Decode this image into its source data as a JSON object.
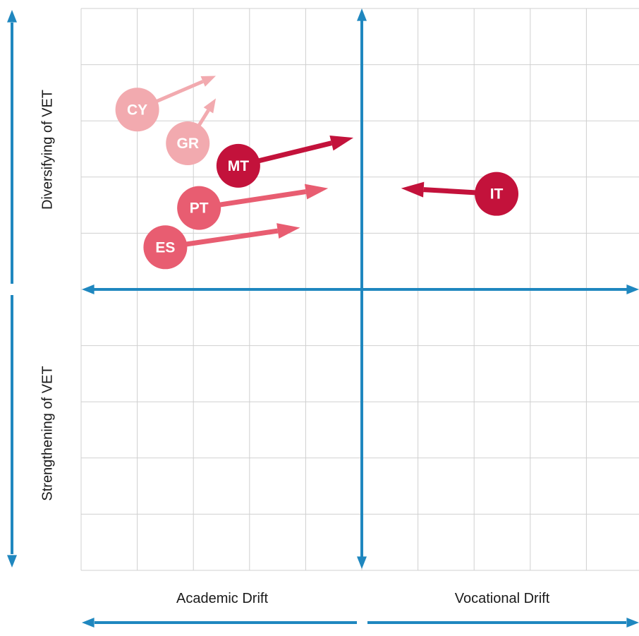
{
  "labels": {
    "top_left": "Diversifying of VET",
    "bottom_left": "Strengthening of VET",
    "bottom_academic": "Academic Drift",
    "bottom_vocational": "Vocational Drift"
  },
  "colors": {
    "axis": "#1f87bf",
    "grid": "#d0d0d0",
    "dark_red": "#c3123b",
    "medium_pink": "#e85d71",
    "light_pink": "#f2aaaf",
    "text_on_marker": "#ffffff"
  },
  "countries": [
    {
      "code": "CY",
      "color_key": "light_pink",
      "from": [
        -4,
        3.2
      ],
      "to": [
        -2.6,
        3.8
      ]
    },
    {
      "code": "GR",
      "color_key": "light_pink",
      "from": [
        -3.1,
        2.6
      ],
      "to": [
        -2.6,
        3.4
      ]
    },
    {
      "code": "MT",
      "color_key": "dark_red",
      "from": [
        -2.2,
        2.2
      ],
      "to": [
        -0.15,
        2.7
      ]
    },
    {
      "code": "PT",
      "color_key": "medium_pink",
      "from": [
        -2.9,
        1.45
      ],
      "to": [
        -0.6,
        1.8
      ]
    },
    {
      "code": "ES",
      "color_key": "medium_pink",
      "from": [
        -3.5,
        0.75
      ],
      "to": [
        -1.1,
        1.1
      ]
    },
    {
      "code": "IT",
      "color_key": "dark_red",
      "from": [
        2.4,
        1.7
      ],
      "to": [
        0.7,
        1.8
      ]
    }
  ]
}
